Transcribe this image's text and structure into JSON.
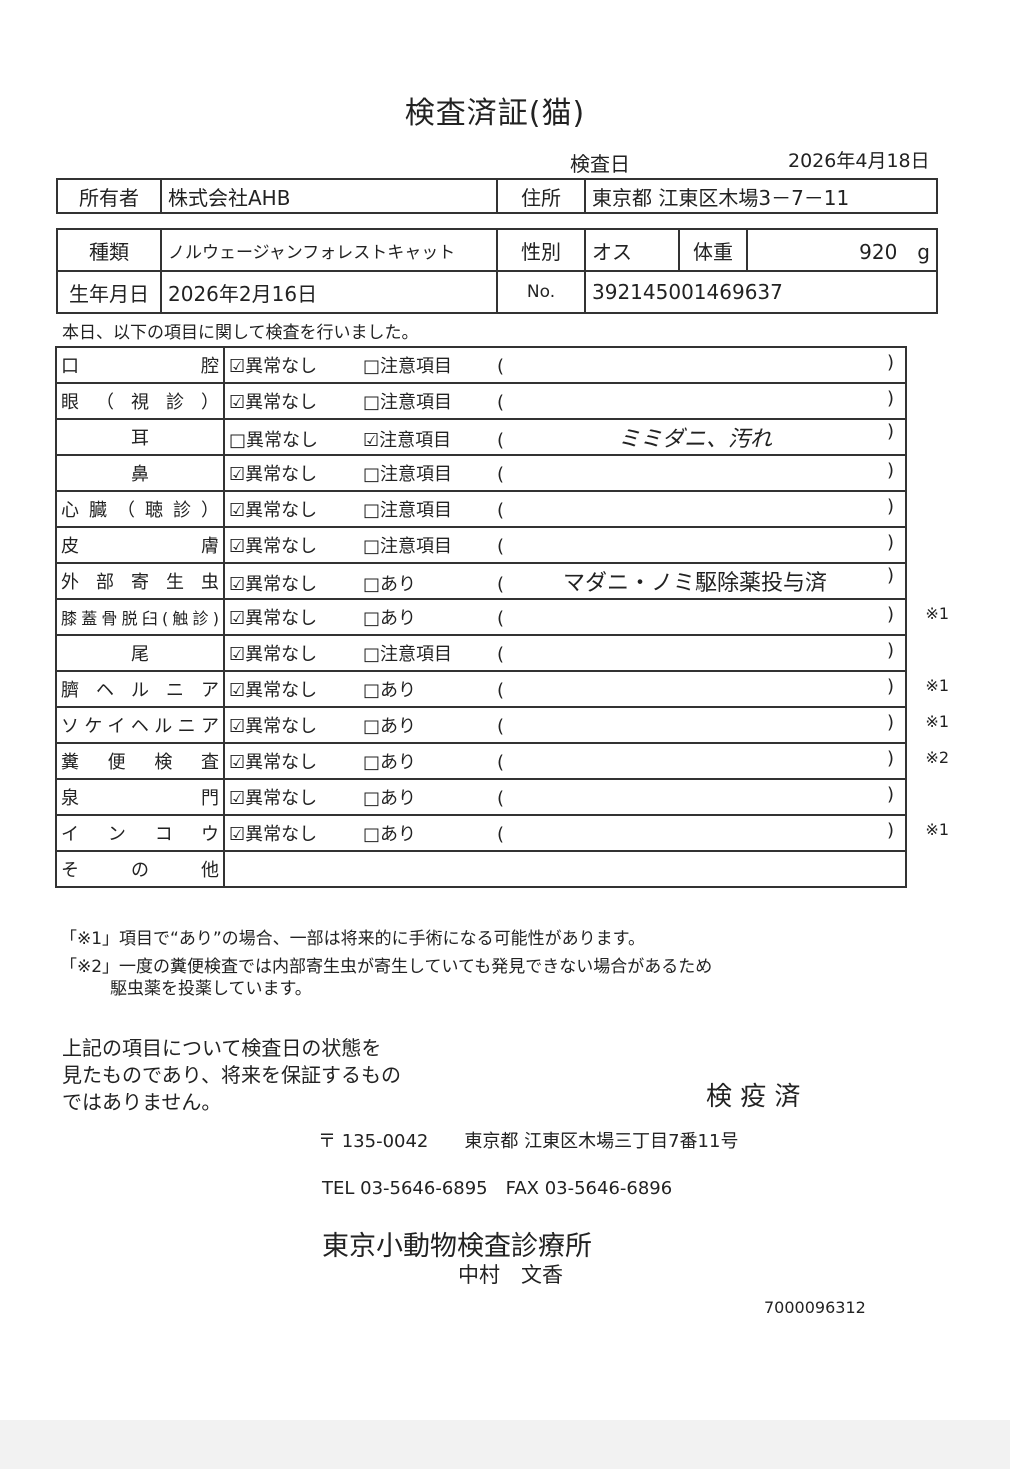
{
  "title": "検査済証(猫)",
  "exam_date_label": "検査日",
  "exam_date": "2026年4月18日",
  "owner_label": "所有者",
  "owner": "株式会社AHB",
  "address_label": "住所",
  "address": "東京都 江東区木場3－7－11",
  "breed_label": "種類",
  "breed": "ノルウェージャンフォレストキャット",
  "sex_label": "性別",
  "sex": "オス",
  "weight_label": "体重",
  "weight": "920　g",
  "birth_label": "生年月日",
  "birth": "2026年2月16日",
  "no_label": "No.",
  "no": "392145001469637",
  "intro": "本日、以下の項目に関して検査を行いました。",
  "rows": [
    {
      "label": "口　腔",
      "opt1": "☑異常なし",
      "opt2": "□注意項目",
      "note": "",
      "mark": ""
    },
    {
      "label": "眼（視診）",
      "opt1": "☑異常なし",
      "opt2": "□注意項目",
      "note": "",
      "mark": ""
    },
    {
      "label": "耳",
      "opt1": "□異常なし",
      "opt2": "☑注意項目",
      "note": "ミミダニ、汚れ",
      "mark": ""
    },
    {
      "label": "鼻",
      "opt1": "☑異常なし",
      "opt2": "□注意項目",
      "note": "",
      "mark": ""
    },
    {
      "label": "心臓（聴診）",
      "opt1": "☑異常なし",
      "opt2": "□注意項目",
      "note": "",
      "mark": ""
    },
    {
      "label": "皮　膚",
      "opt1": "☑異常なし",
      "opt2": "□注意項目",
      "note": "",
      "mark": ""
    },
    {
      "label": "外部寄生虫",
      "opt1": "☑異常なし",
      "opt2": "□あり",
      "note": "マダニ・ノミ駆除薬投与済",
      "mark": ""
    },
    {
      "label": "膝蓋骨脱臼(触診)",
      "opt1": "☑異常なし",
      "opt2": "□あり",
      "note": "",
      "mark": "※1"
    },
    {
      "label": "尾",
      "opt1": "☑異常なし",
      "opt2": "□注意項目",
      "note": "",
      "mark": ""
    },
    {
      "label": "臍ヘルニア",
      "opt1": "☑異常なし",
      "opt2": "□あり",
      "note": "",
      "mark": "※1"
    },
    {
      "label": "ソケイヘルニア",
      "opt1": "☑異常なし",
      "opt2": "□あり",
      "note": "",
      "mark": "※1"
    },
    {
      "label": "糞便検査",
      "opt1": "☑異常なし",
      "opt2": "□あり",
      "note": "",
      "mark": "※2"
    },
    {
      "label": "泉　門",
      "opt1": "☑異常なし",
      "opt2": "□あり",
      "note": "",
      "mark": ""
    },
    {
      "label": "インコウ",
      "opt1": "☑異常なし",
      "opt2": "□あり",
      "note": "",
      "mark": "※1"
    }
  ],
  "other_label": "その他",
  "footnote1": "「※1」項目で“あり”の場合、一部は将来的に手術になる可能性があります。",
  "footnote2a": "「※2」一度の糞便検査では内部寄生虫が寄生していても発見できない場合があるため",
  "footnote2b": "駆虫薬を投薬しています。",
  "disclaimer1": "上記の項目について検査日の状態を",
  "disclaimer2": "見たものであり、将来を保証するもの",
  "disclaimer3": "ではありません。",
  "stamp": "検 疫 済",
  "postal": "〒 135-0042　　東京都 江東区木場三丁目7番11号",
  "tel": "TEL 03-5646-6895　FAX 03-5646-6896",
  "clinic": "東京小動物検査診療所",
  "vet": "中村　文香",
  "doc_no": "7000096312"
}
